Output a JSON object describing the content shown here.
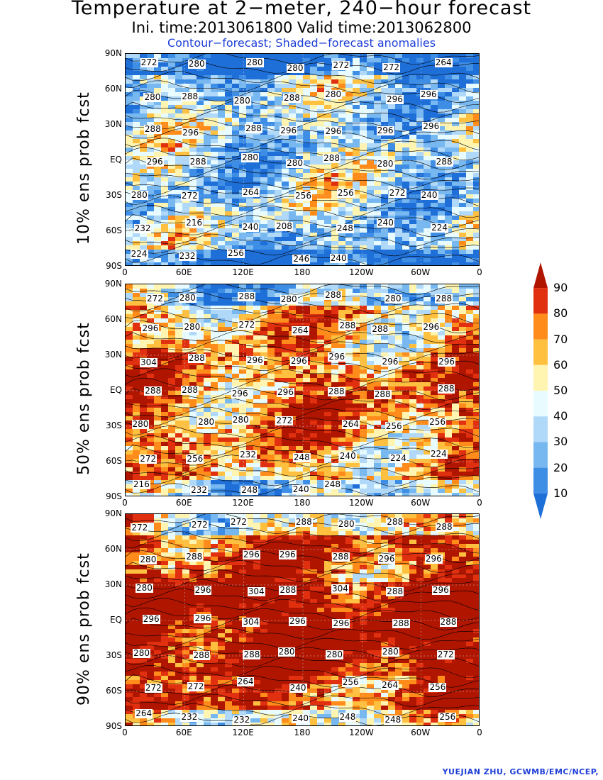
{
  "header": {
    "title": "Temperature at 2−meter, 240−hour forecast",
    "subtitle": "Ini. time:2013061800    Valid time:2013062800",
    "subsubtitle": "Contour−forecast; Shaded−forecast anomalies"
  },
  "axes": {
    "lat_ticks": [
      "90N",
      "60N",
      "30N",
      "EQ",
      "30S",
      "60S",
      "90S"
    ],
    "lon_ticks": [
      "0",
      "60E",
      "120E",
      "180",
      "120W",
      "60W",
      "0"
    ]
  },
  "panels": [
    {
      "label": "10% ens prob fcst",
      "warm_fraction": 0.35,
      "contour_labels": [
        "272",
        "280",
        "280",
        "280",
        "272",
        "272",
        "264",
        "280",
        "288",
        "280",
        "288",
        "280",
        "296",
        "296",
        "288",
        "296",
        "288",
        "296",
        "296",
        "296",
        "296",
        "296",
        "288",
        "280",
        "280",
        "288",
        "280",
        "288",
        "280",
        "272",
        "264",
        "256",
        "256",
        "272",
        "240",
        "232",
        "216",
        "240",
        "208",
        "248",
        "240",
        "224",
        "224",
        "232",
        "256",
        "246",
        "240"
      ]
    },
    {
      "label": "50% ens prob fcst",
      "warm_fraction": 0.65,
      "contour_labels": [
        "272",
        "280",
        "288",
        "280",
        "288",
        "280",
        "288",
        "296",
        "280",
        "272",
        "264",
        "288",
        "288",
        "296",
        "304",
        "288",
        "296",
        "296",
        "296",
        "296",
        "296",
        "288",
        "288",
        "296",
        "296",
        "288",
        "288",
        "288",
        "280",
        "280",
        "280",
        "272",
        "264",
        "256",
        "256",
        "272",
        "256",
        "232",
        "248",
        "240",
        "224",
        "224",
        "216",
        "232",
        "248",
        "240",
        "248"
      ]
    },
    {
      "label": "90% ens prob fcst",
      "warm_fraction": 0.85,
      "contour_labels": [
        "272",
        "272",
        "272",
        "288",
        "280",
        "288",
        "288",
        "280",
        "288",
        "296",
        "296",
        "288",
        "296",
        "296",
        "280",
        "296",
        "304",
        "288",
        "304",
        "288",
        "296",
        "296",
        "296",
        "304",
        "296",
        "296",
        "288",
        "288",
        "280",
        "288",
        "288",
        "280",
        "280",
        "280",
        "272",
        "272",
        "272",
        "264",
        "240",
        "256",
        "264",
        "256",
        "264",
        "232",
        "232",
        "240",
        "248",
        "248",
        "256"
      ]
    }
  ],
  "colorbar": {
    "levels": [
      "10",
      "20",
      "30",
      "40",
      "50",
      "60",
      "70",
      "80",
      "90"
    ],
    "colors": [
      "#1f6fd8",
      "#3f8ee6",
      "#78b8f0",
      "#b0d8f8",
      "#e8fcff",
      "#fff4b0",
      "#ffc040",
      "#ff8c1a",
      "#e03010",
      "#b01500"
    ]
  },
  "credit": "YUEJIAN ZHU, GCWMB/EMC/NCEP,"
}
